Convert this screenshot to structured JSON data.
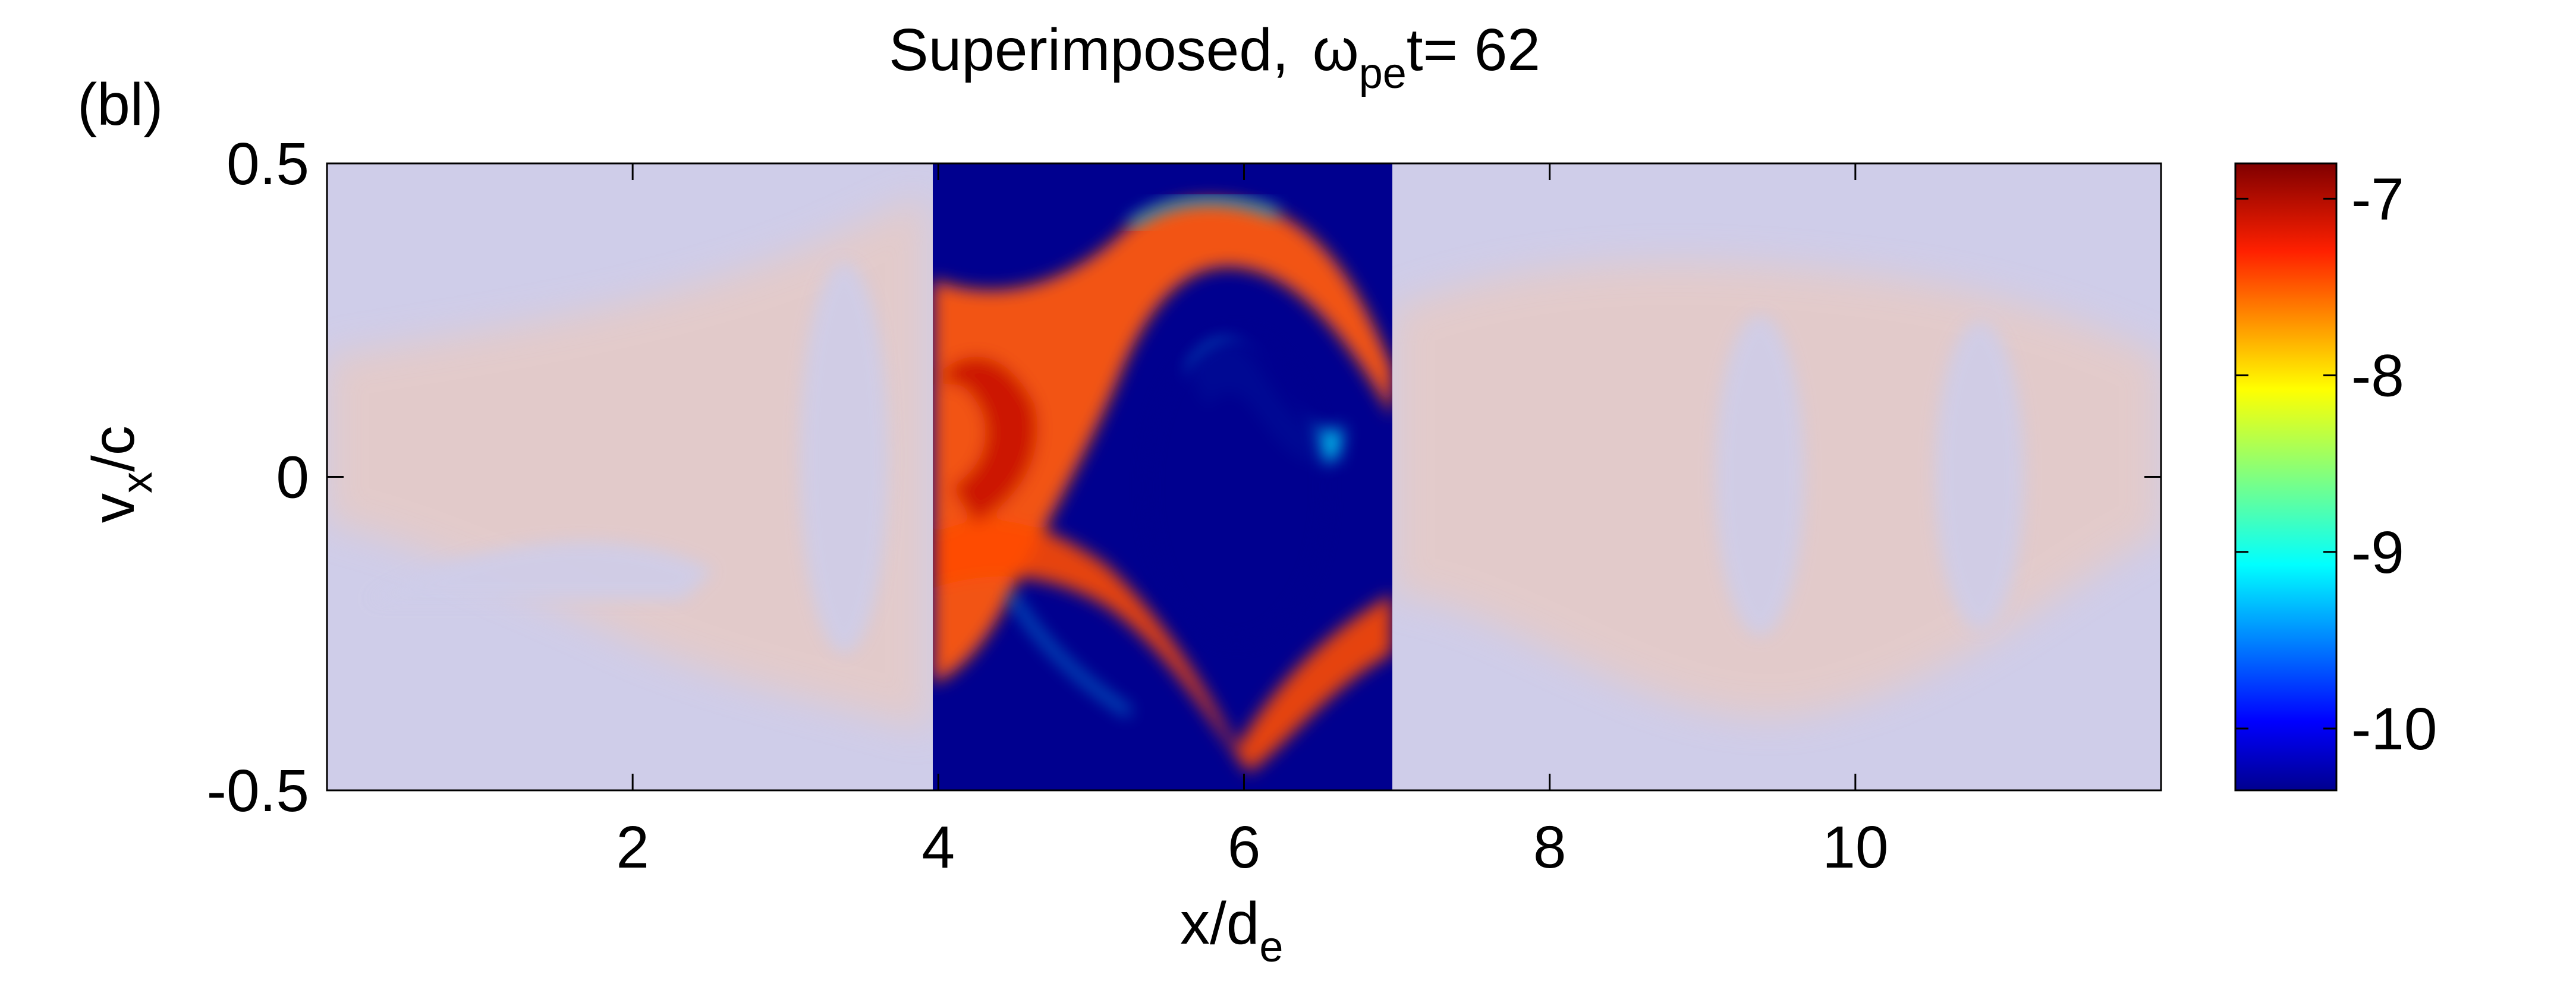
{
  "figure": {
    "panel_label": "(bl)",
    "title_prefix": "Superimposed,",
    "title_omega": "ω",
    "title_subscript": "pe",
    "title_suffix": "t= 62"
  },
  "chart_data": {
    "type": "heatmap",
    "title": "Superimposed,  ωpe t= 62",
    "xlabel_main": "x/d",
    "xlabel_sub": "e",
    "ylabel_main": "v",
    "ylabel_sub": "x",
    "ylabel_suffix": "/c",
    "xlim": [
      0,
      12
    ],
    "ylim": [
      -0.5,
      0.5
    ],
    "xticks": [
      2,
      4,
      6,
      8,
      10
    ],
    "xtick_labels": [
      "2",
      "4",
      "6",
      "8",
      "10"
    ],
    "yticks": [
      -0.5,
      0,
      0.5
    ],
    "ytick_labels": [
      "-0.5",
      "0",
      "0.5"
    ],
    "highlight_x_range": [
      4,
      7
    ],
    "colorbar": {
      "range": [
        -10.35,
        -6.8
      ],
      "ticks": [
        -7,
        -8,
        -9,
        -10
      ],
      "tick_labels": [
        "-7",
        "-8",
        "-9",
        "-10"
      ],
      "colormap": "jet"
    },
    "overlay_color": "#cfcde9",
    "inner_background": "#00008f",
    "grid": false
  }
}
